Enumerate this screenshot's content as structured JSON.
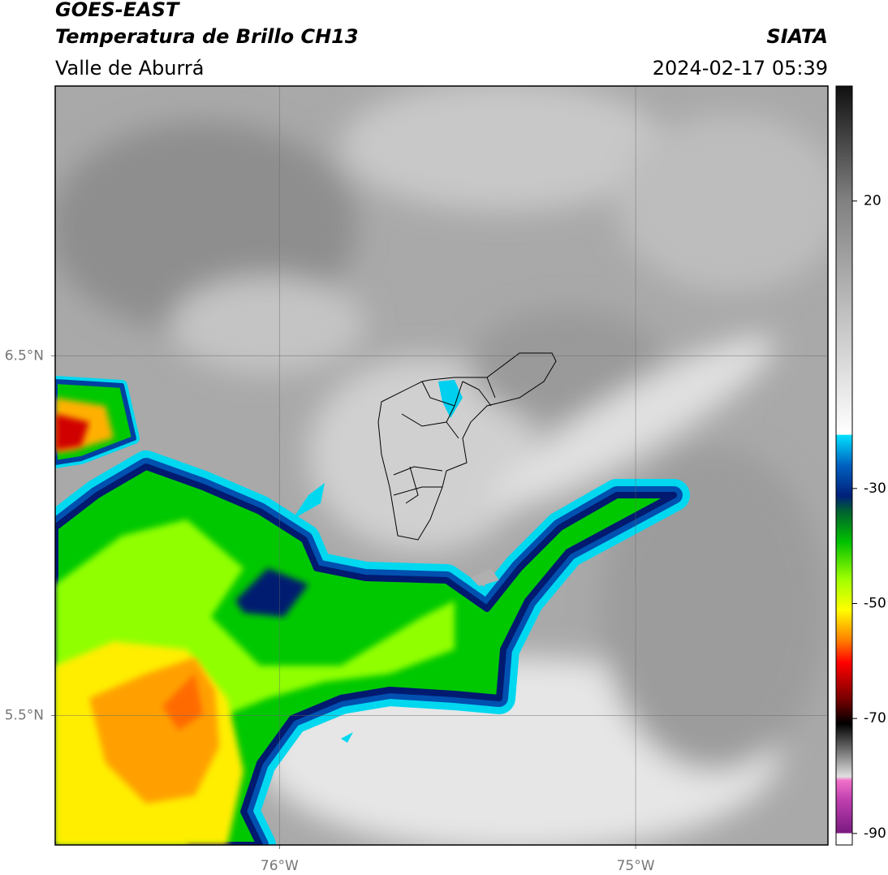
{
  "header": {
    "title": "GOES-EAST",
    "subtitle": "Temperatura de Brillo CH13",
    "region": "Valle de Aburrá",
    "source": "SIATA",
    "datetime": "2024-02-17 05:39"
  },
  "map": {
    "xlim": [
      -76.63,
      -74.46
    ],
    "ylim": [
      5.14,
      7.25
    ],
    "xticks": [
      {
        "value": -76,
        "label": "76°W"
      },
      {
        "value": -75,
        "label": "75°W"
      }
    ],
    "yticks": [
      {
        "value": 6.5,
        "label": "6.5°N"
      },
      {
        "value": 5.5,
        "label": "5.5°N"
      }
    ],
    "grid": true
  },
  "colorbar": {
    "lim": [
      -92,
      40
    ],
    "ticks": [
      20,
      -30,
      -50,
      -70,
      -90
    ]
  }
}
